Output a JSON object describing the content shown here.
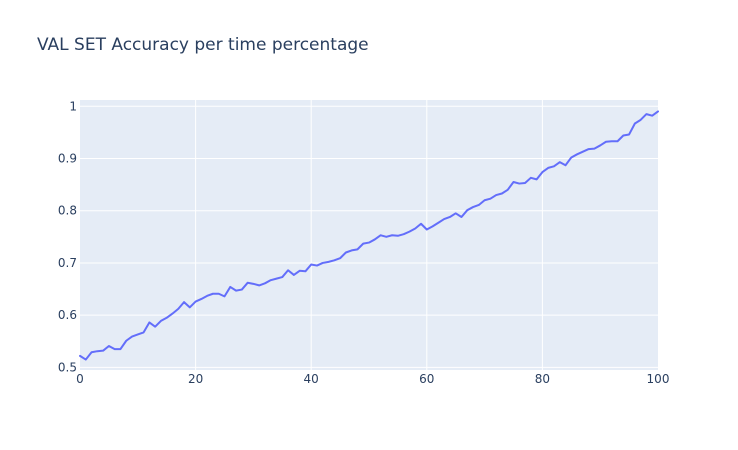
{
  "chart_data": {
    "type": "line",
    "title": "VAL SET Accuracy per time percentage",
    "xlabel": "",
    "ylabel": "",
    "xlim": [
      0,
      100
    ],
    "ylim": [
      0.495,
      1.012
    ],
    "x_ticks": [
      0,
      20,
      40,
      60,
      80,
      100
    ],
    "y_ticks": [
      0.5,
      0.6,
      0.7,
      0.8,
      0.9,
      1
    ],
    "y_tick_labels": [
      "0.5",
      "0.6",
      "0.7",
      "0.8",
      "0.9",
      "1"
    ],
    "grid": true,
    "legend": "none",
    "colors": {
      "line": "#636efa",
      "plot_bg": "#e5ecf6",
      "grid": "#ffffff",
      "text": "#2a3f5f"
    },
    "series": [
      {
        "x": [
          0,
          1,
          2,
          3,
          4,
          5,
          6,
          7,
          8,
          9,
          10,
          11,
          12,
          13,
          14,
          15,
          16,
          17,
          18,
          19,
          20,
          21,
          22,
          23,
          24,
          25,
          26,
          27,
          28,
          29,
          30,
          31,
          32,
          33,
          34,
          35,
          36,
          37,
          38,
          39,
          40,
          41,
          42,
          43,
          44,
          45,
          46,
          47,
          48,
          49,
          50,
          51,
          52,
          53,
          54,
          55,
          56,
          57,
          58,
          59,
          60,
          61,
          62,
          63,
          64,
          65,
          66,
          67,
          68,
          69,
          70,
          71,
          72,
          73,
          74,
          75,
          76,
          77,
          78,
          79,
          80,
          81,
          82,
          83,
          84,
          85,
          86,
          87,
          88,
          89,
          90,
          91,
          92,
          93,
          94,
          95,
          96,
          97,
          98,
          99,
          100
        ],
        "y": [
          0.522,
          0.515,
          0.529,
          0.531,
          0.532,
          0.541,
          0.535,
          0.535,
          0.551,
          0.559,
          0.563,
          0.567,
          0.586,
          0.578,
          0.589,
          0.595,
          0.603,
          0.612,
          0.625,
          0.615,
          0.626,
          0.631,
          0.637,
          0.641,
          0.641,
          0.636,
          0.654,
          0.647,
          0.649,
          0.662,
          0.66,
          0.657,
          0.661,
          0.667,
          0.67,
          0.673,
          0.686,
          0.677,
          0.685,
          0.684,
          0.697,
          0.695,
          0.7,
          0.702,
          0.705,
          0.709,
          0.72,
          0.724,
          0.726,
          0.737,
          0.739,
          0.745,
          0.753,
          0.75,
          0.753,
          0.752,
          0.755,
          0.76,
          0.766,
          0.775,
          0.764,
          0.77,
          0.777,
          0.784,
          0.788,
          0.795,
          0.788,
          0.801,
          0.807,
          0.811,
          0.82,
          0.823,
          0.83,
          0.833,
          0.84,
          0.855,
          0.852,
          0.853,
          0.863,
          0.86,
          0.874,
          0.882,
          0.885,
          0.893,
          0.887,
          0.902,
          0.908,
          0.913,
          0.918,
          0.919,
          0.925,
          0.932,
          0.933,
          0.933,
          0.944,
          0.946,
          0.967,
          0.974,
          0.985,
          0.982,
          0.99
        ]
      }
    ]
  }
}
